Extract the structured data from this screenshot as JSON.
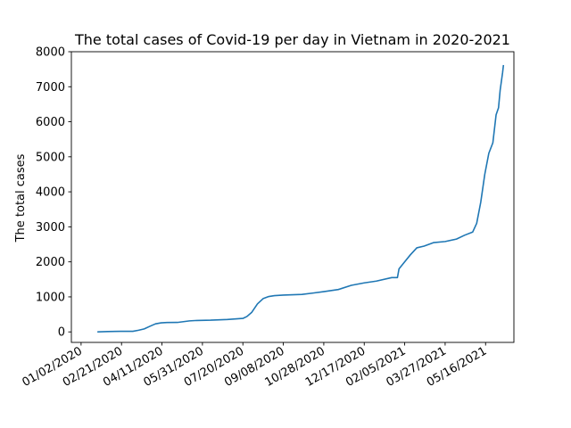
{
  "chart_data": {
    "type": "line",
    "title": "The total cases of Covid-19 per day in Vietnam in 2020-2021",
    "xlabel": "",
    "ylabel": "The total cases",
    "x_scale": "date",
    "xlim": [
      "2019-12-21",
      "2021-06-20"
    ],
    "ylim": [
      -300,
      8000
    ],
    "x_ticks": [
      "2020-01-02",
      "2020-02-21",
      "2020-04-11",
      "2020-05-31",
      "2020-07-20",
      "2020-09-08",
      "2020-10-28",
      "2020-12-17",
      "2021-02-05",
      "2021-03-27",
      "2021-05-16"
    ],
    "x_tick_labels": [
      "01/02/2020",
      "02/21/2020",
      "04/11/2020",
      "05/31/2020",
      "07/20/2020",
      "09/08/2020",
      "10/28/2020",
      "12/17/2020",
      "02/05/2021",
      "03/27/2021",
      "05/16/2021"
    ],
    "y_ticks": [
      0,
      1000,
      2000,
      3000,
      4000,
      5000,
      6000,
      7000,
      8000
    ],
    "y_tick_labels": [
      "0",
      "1000",
      "2000",
      "3000",
      "4000",
      "5000",
      "6000",
      "7000",
      "8000"
    ],
    "grid": false,
    "legend": "none",
    "series": [
      {
        "color": "#1f77b4",
        "x": [
          "2020-01-23",
          "2020-02-04",
          "2020-02-20",
          "2020-03-06",
          "2020-03-13",
          "2020-03-20",
          "2020-03-27",
          "2020-04-03",
          "2020-04-10",
          "2020-04-17",
          "2020-04-30",
          "2020-05-15",
          "2020-05-22",
          "2020-05-24",
          "2020-06-10",
          "2020-07-01",
          "2020-07-20",
          "2020-07-25",
          "2020-07-31",
          "2020-08-07",
          "2020-08-14",
          "2020-08-21",
          "2020-08-28",
          "2020-09-08",
          "2020-10-01",
          "2020-10-15",
          "2020-10-28",
          "2020-11-15",
          "2020-12-01",
          "2020-12-17",
          "2021-01-01",
          "2021-01-20",
          "2021-01-27",
          "2021-01-29",
          "2021-02-05",
          "2021-02-12",
          "2021-02-20",
          "2021-03-01",
          "2021-03-13",
          "2021-03-27",
          "2021-04-10",
          "2021-04-20",
          "2021-04-30",
          "2021-05-05",
          "2021-05-10",
          "2021-05-15",
          "2021-05-20",
          "2021-05-25",
          "2021-05-29",
          "2021-06-01",
          "2021-06-03",
          "2021-06-06",
          "2021-06-07"
        ],
        "y": [
          0,
          10,
          16,
          16,
          47,
          85,
          160,
          230,
          258,
          268,
          270,
          314,
          324,
          326,
          334,
          355,
          385,
          440,
          560,
          800,
          950,
          1010,
          1036,
          1050,
          1070,
          1110,
          1150,
          1210,
          1330,
          1400,
          1450,
          1550,
          1550,
          1800,
          2000,
          2200,
          2400,
          2450,
          2550,
          2580,
          2650,
          2760,
          2850,
          3100,
          3700,
          4500,
          5100,
          5400,
          6200,
          6400,
          6900,
          7400,
          7600
        ]
      }
    ]
  }
}
